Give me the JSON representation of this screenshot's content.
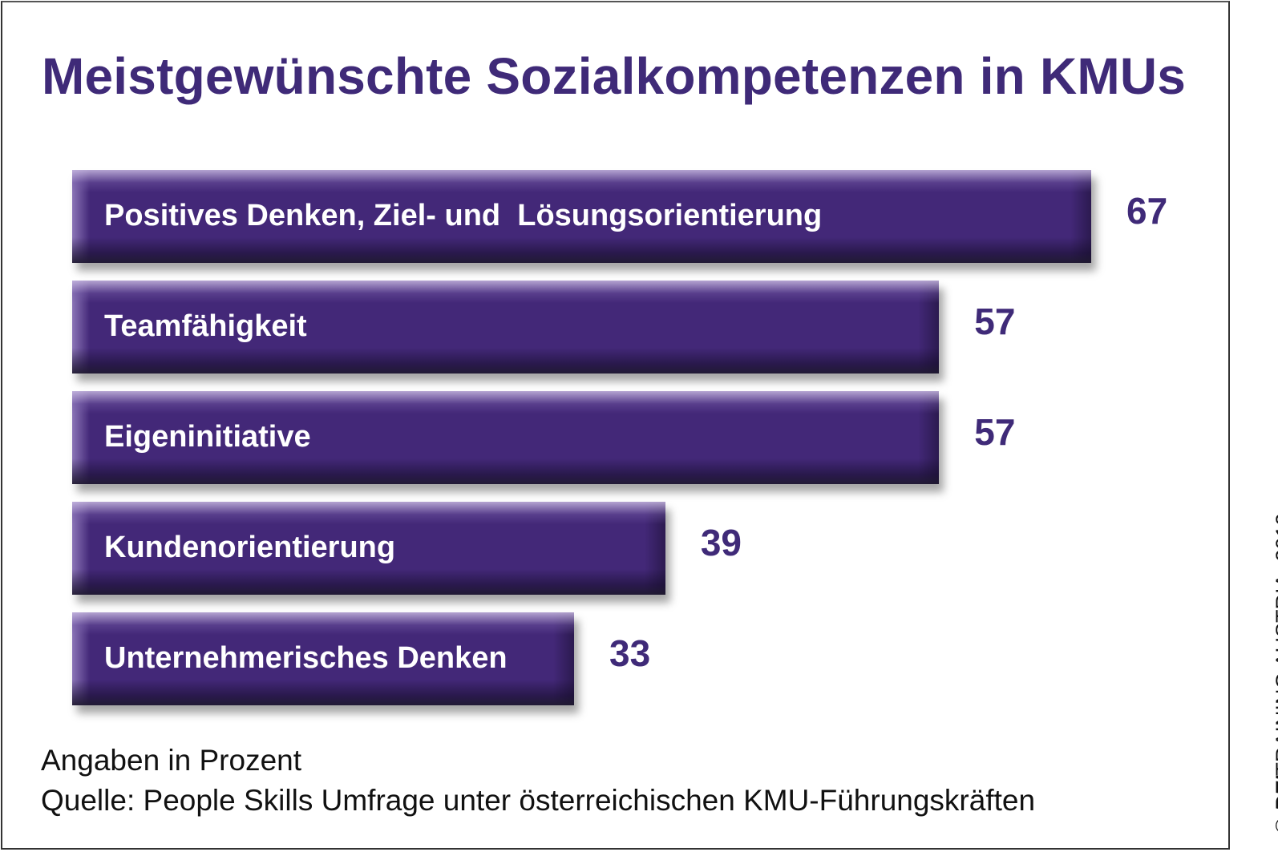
{
  "chart_data": {
    "type": "bar",
    "orientation": "horizontal",
    "title": "Meistgewünschte Sozialkompetenzen in KMUs",
    "categories": [
      "Positives Denken, Ziel- und  Lösungsorientierung",
      "Teamfähigkeit",
      "Eigeninitiative",
      "Kundenorientierung",
      "Unternehmerisches Denken"
    ],
    "values": [
      67,
      57,
      57,
      39,
      33
    ],
    "value_labels": [
      "67",
      "57",
      "57",
      "39",
      "33"
    ],
    "xlabel": "",
    "ylabel": "",
    "xlim": [
      0,
      67
    ],
    "grid": false,
    "bar_color": "#432878",
    "text_color": "#3f2a78"
  },
  "notes": {
    "unit": "Angaben in Prozent",
    "source": "Quelle: People Skills Umfrage unter österreichischen KMU-Führungskräften"
  },
  "copyright": {
    "symbol": "©",
    "brand_bold": "BEI",
    "brand_rest": "TRAINING AUSTRIA",
    "year": ", 2012"
  }
}
